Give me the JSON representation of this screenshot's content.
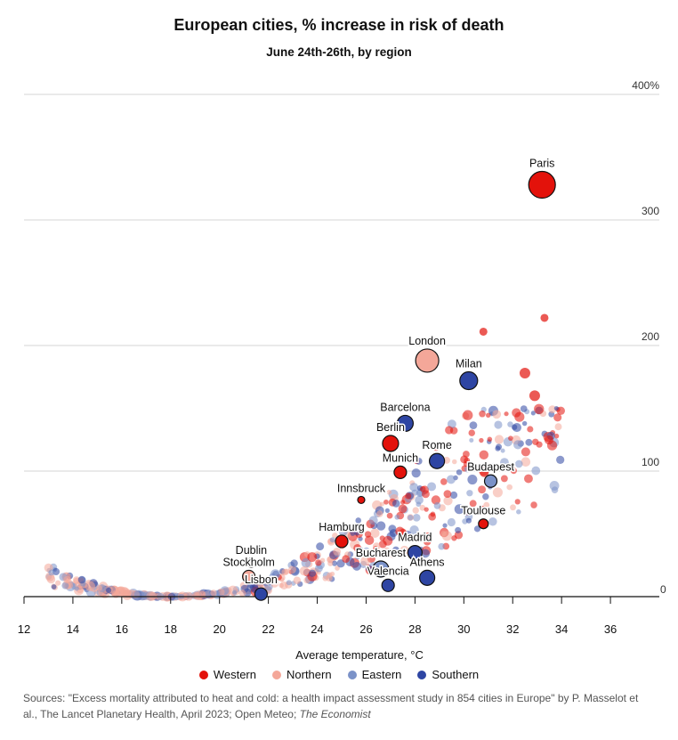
{
  "chart_data": {
    "type": "scatter",
    "title": "European cities, % increase in risk of death",
    "subtitle": "June 24th-26th, by region",
    "xlabel": "Average temperature, °C",
    "ylabel": "",
    "xlim": [
      12,
      38
    ],
    "ylim": [
      0,
      400
    ],
    "x_ticks": [
      "12",
      "14",
      "16",
      "18",
      "20",
      "22",
      "24",
      "26",
      "28",
      "30",
      "32",
      "34",
      "36"
    ],
    "y_ticks": [
      "400%",
      "300",
      "200",
      "100",
      "0"
    ],
    "grid": "horizontal",
    "legend_position": "bottom",
    "series": [
      {
        "name": "Western",
        "color": "#e3120b"
      },
      {
        "name": "Northern",
        "color": "#f4a799"
      },
      {
        "name": "Eastern",
        "color": "#7b92c8"
      },
      {
        "name": "Southern",
        "color": "#2e45a3"
      }
    ],
    "labeled_points": [
      {
        "label": "Paris",
        "x": 33.2,
        "y": 328,
        "region": "Western"
      },
      {
        "label": "London",
        "x": 28.5,
        "y": 188,
        "region": "Northern"
      },
      {
        "label": "Milan",
        "x": 30.2,
        "y": 172,
        "region": "Southern"
      },
      {
        "label": "Barcelona",
        "x": 27.6,
        "y": 138,
        "region": "Southern"
      },
      {
        "label": "Berlin",
        "x": 27.0,
        "y": 122,
        "region": "Western"
      },
      {
        "label": "Rome",
        "x": 28.9,
        "y": 108,
        "region": "Southern"
      },
      {
        "label": "Munich",
        "x": 27.4,
        "y": 99,
        "region": "Western"
      },
      {
        "label": "Budapest",
        "x": 31.1,
        "y": 92,
        "region": "Eastern"
      },
      {
        "label": "Innsbruck",
        "x": 25.8,
        "y": 77,
        "region": "Western"
      },
      {
        "label": "Toulouse",
        "x": 30.8,
        "y": 58,
        "region": "Western"
      },
      {
        "label": "Hamburg",
        "x": 25.0,
        "y": 44,
        "region": "Western"
      },
      {
        "label": "Madrid",
        "x": 28.0,
        "y": 35,
        "region": "Southern"
      },
      {
        "label": "Dublin",
        "x": 21.3,
        "y": 27,
        "region": "Northern"
      },
      {
        "label": "Bucharest",
        "x": 26.6,
        "y": 22,
        "region": "Eastern"
      },
      {
        "label": "Stockholm",
        "x": 21.2,
        "y": 16,
        "region": "Northern"
      },
      {
        "label": "Athens",
        "x": 28.5,
        "y": 15,
        "region": "Southern"
      },
      {
        "label": "Valencia",
        "x": 26.9,
        "y": 9,
        "region": "Southern"
      },
      {
        "label": "Lisbon",
        "x": 21.7,
        "y": 2,
        "region": "Southern"
      }
    ],
    "background_points_note": ""
  },
  "legend": {
    "western": "Western",
    "northern": "Northern",
    "eastern": "Eastern",
    "southern": "Southern"
  },
  "source": {
    "text": "Sources: \"Excess mortality attributed to heat and cold: a health impact assessment study in 854 cities in Europe\" by P. Masselot et al., The Lancet Planetary Health, April 2023; Open Meteo; ",
    "publisher": "The Economist"
  }
}
